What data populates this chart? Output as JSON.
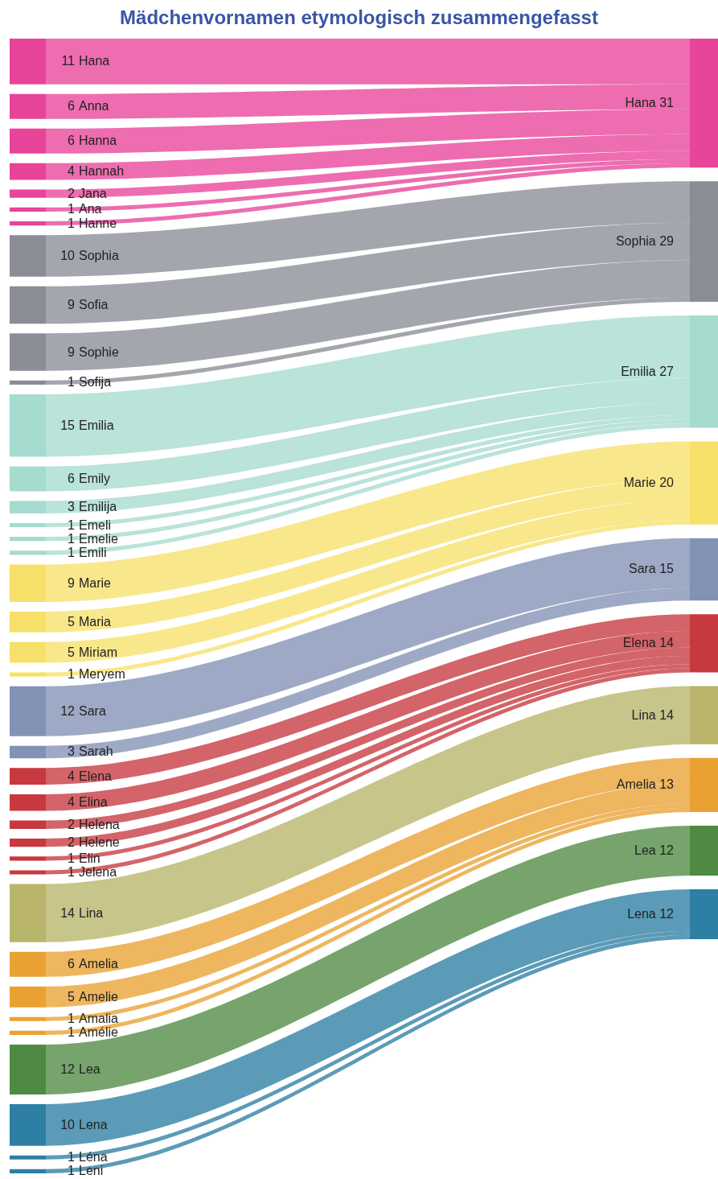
{
  "chart_data": {
    "type": "other",
    "title": "Mädchenvornamen etymologisch zusammengefasst",
    "categories": [
      "Hana",
      "Anna",
      "Hanna",
      "Hannah",
      "Jana",
      "Ana",
      "Hanne",
      "Sophia",
      "Sofia",
      "Sophie",
      "Sofija",
      "Emilia",
      "Emily",
      "Emilija",
      "Emeli",
      "Emelie",
      "Emili",
      "Marie",
      "Maria",
      "Miriam",
      "Meryem",
      "Sara",
      "Sarah",
      "Elena",
      "Elina",
      "Helena",
      "Helene",
      "Elin",
      "Jelena",
      "Lina",
      "Amelia",
      "Amelie",
      "Amalia",
      "Amélie",
      "Lea",
      "Lena",
      "Léna",
      "Leni"
    ],
    "data_labels": true,
    "series": [
      {
        "name": "Hana 31",
        "color": "#e8449a",
        "values": [
          11,
          6,
          6,
          4,
          2,
          1,
          1,
          null,
          null,
          null,
          null,
          null,
          null,
          null,
          null,
          null,
          null,
          null,
          null,
          null,
          null,
          null,
          null,
          null,
          null,
          null,
          null,
          null,
          null,
          null,
          null,
          null,
          null,
          null,
          null,
          null,
          null,
          null
        ]
      },
      {
        "name": "Sophia 29",
        "color": "#8a8d96",
        "values": [
          null,
          null,
          null,
          null,
          null,
          null,
          null,
          10,
          9,
          9,
          1,
          null,
          null,
          null,
          null,
          null,
          null,
          null,
          null,
          null,
          null,
          null,
          null,
          null,
          null,
          null,
          null,
          null,
          null,
          null,
          null,
          null,
          null,
          null,
          null,
          null,
          null,
          null
        ]
      },
      {
        "name": "Emilia 27",
        "color": "#a6dbcf",
        "values": [
          null,
          null,
          null,
          null,
          null,
          null,
          null,
          null,
          null,
          null,
          null,
          15,
          6,
          3,
          1,
          1,
          1,
          null,
          null,
          null,
          null,
          null,
          null,
          null,
          null,
          null,
          null,
          null,
          null,
          null,
          null,
          null,
          null,
          null,
          null,
          null,
          null,
          null
        ]
      },
      {
        "name": "Marie 20",
        "color": "#f7e06a",
        "values": [
          null,
          null,
          null,
          null,
          null,
          null,
          null,
          null,
          null,
          null,
          null,
          null,
          null,
          null,
          null,
          null,
          null,
          9,
          5,
          5,
          1,
          null,
          null,
          null,
          null,
          null,
          null,
          null,
          null,
          null,
          null,
          null,
          null,
          null,
          null,
          null,
          null,
          null
        ]
      },
      {
        "name": "Sara 15",
        "color": "#8391b5",
        "values": [
          null,
          null,
          null,
          null,
          null,
          null,
          null,
          null,
          null,
          null,
          null,
          null,
          null,
          null,
          null,
          null,
          null,
          null,
          null,
          null,
          null,
          12,
          3,
          null,
          null,
          null,
          null,
          null,
          null,
          null,
          null,
          null,
          null,
          null,
          null,
          null,
          null,
          null
        ]
      },
      {
        "name": "Elena 14",
        "color": "#c7393f",
        "values": [
          null,
          null,
          null,
          null,
          null,
          null,
          null,
          null,
          null,
          null,
          null,
          null,
          null,
          null,
          null,
          null,
          null,
          null,
          null,
          null,
          null,
          null,
          null,
          4,
          4,
          2,
          2,
          1,
          1,
          null,
          null,
          null,
          null,
          null,
          null,
          null,
          null,
          null
        ]
      },
      {
        "name": "Lina 14",
        "color": "#b8b56a",
        "values": [
          null,
          null,
          null,
          null,
          null,
          null,
          null,
          null,
          null,
          null,
          null,
          null,
          null,
          null,
          null,
          null,
          null,
          null,
          null,
          null,
          null,
          null,
          null,
          null,
          null,
          null,
          null,
          null,
          null,
          14,
          null,
          null,
          null,
          null,
          null,
          null,
          null,
          null
        ]
      },
      {
        "name": "Amelia 13",
        "color": "#e9a232",
        "values": [
          null,
          null,
          null,
          null,
          null,
          null,
          null,
          null,
          null,
          null,
          null,
          null,
          null,
          null,
          null,
          null,
          null,
          null,
          null,
          null,
          null,
          null,
          null,
          null,
          null,
          null,
          null,
          null,
          null,
          null,
          6,
          5,
          1,
          1,
          null,
          null,
          null,
          null
        ]
      },
      {
        "name": "Lea 12",
        "color": "#4f8a43",
        "values": [
          null,
          null,
          null,
          null,
          null,
          null,
          null,
          null,
          null,
          null,
          null,
          null,
          null,
          null,
          null,
          null,
          null,
          null,
          null,
          null,
          null,
          null,
          null,
          null,
          null,
          null,
          null,
          null,
          null,
          null,
          null,
          null,
          null,
          null,
          12,
          null,
          null,
          null
        ]
      },
      {
        "name": "Lena 12",
        "color": "#2d7fa3",
        "values": [
          null,
          null,
          null,
          null,
          null,
          null,
          null,
          null,
          null,
          null,
          null,
          null,
          null,
          null,
          null,
          null,
          null,
          null,
          null,
          null,
          null,
          null,
          null,
          null,
          null,
          null,
          null,
          null,
          null,
          null,
          null,
          null,
          null,
          null,
          null,
          10,
          1,
          1
        ]
      }
    ]
  }
}
